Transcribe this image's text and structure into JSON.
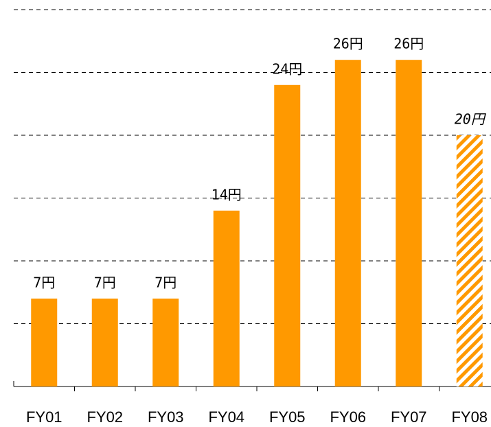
{
  "chart_data": {
    "type": "bar",
    "categories": [
      "FY01",
      "FY02",
      "FY03",
      "FY04",
      "FY05",
      "FY06",
      "FY07",
      "FY08"
    ],
    "values": [
      7,
      7,
      7,
      14,
      24,
      26,
      26,
      20
    ],
    "value_labels": [
      "7円",
      "7円",
      "7円",
      "14円",
      "24円",
      "26円",
      "26円",
      "20円"
    ],
    "hatch": [
      false,
      false,
      false,
      false,
      false,
      false,
      false,
      true
    ],
    "color": "#ff9900",
    "ylim": [
      0,
      30
    ],
    "yticks": [
      0,
      5,
      10,
      15,
      20,
      25,
      30
    ],
    "grid": true
  }
}
